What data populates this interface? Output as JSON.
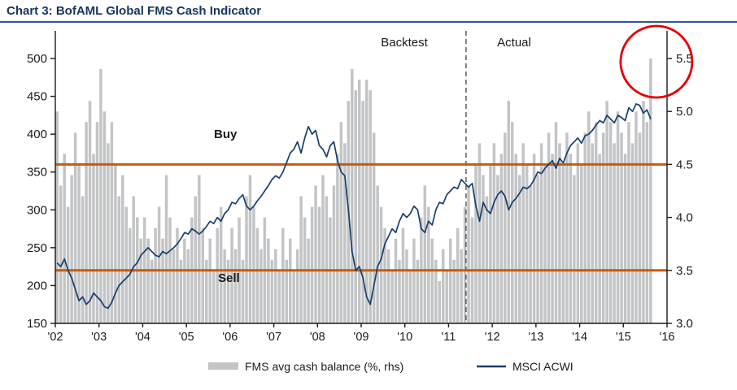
{
  "title": "Chart 3: BofAML Global FMS Cash Indicator",
  "annotations": {
    "backtest": "Backtest",
    "actual": "Actual",
    "buy": "Buy",
    "sell": "Sell"
  },
  "legend": [
    {
      "label": "FMS avg cash balance (%, rhs)",
      "swatch": "bar",
      "color": "#c2c4c6"
    },
    {
      "label": "MSCI ACWI",
      "swatch": "line",
      "color": "#173f6b"
    }
  ],
  "colors": {
    "title": "#17365d",
    "title_rule": "#2f5597",
    "bar": "#c2c4c6",
    "line": "#173f6b",
    "threshold": "#c55a11",
    "divider": "#3f3f3f",
    "highlight_circle": "#e50000",
    "axis_text": "#1a1a1a",
    "axis_line": "#1a1a1a"
  },
  "chart_data": {
    "type": "combo",
    "x": {
      "start": "2002-01",
      "interval": "monthly",
      "points": 164
    },
    "x_axis": {
      "min_year": 2002,
      "max_year": 2016,
      "tick_labels": [
        "'02",
        "'03",
        "'04",
        "'05",
        "'06",
        "'07",
        "'08",
        "'09",
        "'10",
        "'11",
        "'12",
        "'13",
        "'14",
        "'15",
        "'16"
      ]
    },
    "left_axis": {
      "min": 150,
      "max": 500,
      "ticks": [
        150,
        200,
        250,
        300,
        350,
        400,
        450,
        500
      ],
      "series": "MSCI ACWI"
    },
    "right_axis": {
      "min": 3.0,
      "max": 5.5,
      "tick_labels": [
        "3.0",
        "3.5",
        "4.0",
        "4.5",
        "5.0",
        "5.5"
      ],
      "series": "FMS avg cash balance (%)"
    },
    "thresholds": [
      {
        "label": "Buy",
        "value_rhs": 4.5
      },
      {
        "label": "Sell",
        "value_rhs": 3.5
      }
    ],
    "divider": {
      "x_year": 2011.4,
      "left_label": "Backtest",
      "right_label": "Actual",
      "style": "dashed"
    },
    "highlight": {
      "type": "circle",
      "target": "last_bar",
      "color": "#e50000"
    },
    "series": [
      {
        "name": "FMS avg cash balance (%, rhs)",
        "type": "bar",
        "axis": "right",
        "values": [
          5.0,
          4.3,
          4.6,
          4.1,
          4.4,
          4.8,
          4.5,
          4.2,
          4.9,
          5.1,
          4.6,
          4.9,
          5.4,
          5.0,
          4.7,
          4.9,
          4.5,
          4.2,
          4.4,
          4.1,
          3.9,
          4.2,
          4.0,
          3.8,
          4.0,
          3.8,
          3.6,
          3.9,
          4.1,
          3.8,
          4.4,
          4.0,
          3.7,
          3.9,
          3.6,
          3.8,
          3.7,
          4.0,
          4.2,
          4.4,
          3.9,
          3.6,
          3.8,
          3.5,
          3.9,
          4.1,
          3.7,
          3.6,
          3.9,
          3.7,
          4.0,
          3.6,
          4.2,
          4.4,
          4.1,
          3.9,
          3.7,
          4.0,
          3.8,
          3.6,
          3.7,
          3.5,
          3.9,
          3.6,
          3.8,
          3.5,
          3.7,
          4.2,
          4.0,
          3.8,
          4.1,
          4.3,
          4.1,
          4.4,
          4.2,
          4.0,
          4.3,
          4.6,
          4.9,
          4.7,
          5.1,
          5.4,
          5.2,
          5.3,
          5.1,
          5.3,
          5.2,
          4.8,
          4.3,
          4.1,
          3.9,
          3.7,
          3.5,
          3.8,
          3.6,
          3.9,
          3.7,
          3.5,
          3.8,
          3.6,
          4.0,
          4.3,
          4.1,
          3.8,
          3.6,
          3.4,
          3.7,
          3.5,
          3.8,
          3.6,
          3.9,
          3.7,
          4.1,
          4.3,
          4.0,
          4.5,
          4.7,
          4.4,
          4.2,
          4.5,
          4.7,
          4.4,
          4.6,
          4.8,
          5.1,
          4.9,
          4.6,
          4.4,
          4.7,
          4.5,
          4.3,
          4.6,
          4.4,
          4.7,
          4.5,
          4.8,
          4.6,
          4.9,
          4.7,
          4.5,
          4.8,
          4.6,
          4.4,
          4.7,
          4.5,
          4.8,
          5.0,
          4.7,
          4.9,
          4.6,
          4.8,
          5.1,
          4.9,
          4.7,
          5.0,
          4.8,
          4.6,
          4.9,
          4.7,
          5.0,
          4.8,
          5.1,
          4.9,
          5.5
        ]
      },
      {
        "name": "MSCI ACWI",
        "type": "line",
        "axis": "left",
        "values": [
          230,
          225,
          235,
          220,
          210,
          195,
          180,
          185,
          175,
          180,
          190,
          185,
          180,
          172,
          170,
          178,
          190,
          200,
          205,
          210,
          215,
          225,
          230,
          240,
          245,
          250,
          245,
          240,
          238,
          245,
          242,
          246,
          250,
          255,
          262,
          270,
          268,
          275,
          272,
          268,
          272,
          278,
          285,
          282,
          290,
          285,
          295,
          300,
          310,
          308,
          315,
          320,
          305,
          300,
          305,
          312,
          318,
          325,
          332,
          340,
          345,
          342,
          350,
          362,
          375,
          380,
          390,
          375,
          395,
          410,
          400,
          405,
          385,
          380,
          370,
          385,
          390,
          365,
          350,
          345,
          300,
          245,
          220,
          225,
          210,
          185,
          175,
          200,
          225,
          235,
          255,
          265,
          275,
          270,
          285,
          295,
          290,
          295,
          305,
          300,
          275,
          270,
          285,
          280,
          300,
          310,
          308,
          320,
          325,
          330,
          328,
          340,
          335,
          330,
          335,
          305,
          285,
          310,
          300,
          295,
          310,
          320,
          325,
          318,
          300,
          310,
          315,
          322,
          330,
          328,
          332,
          340,
          350,
          348,
          355,
          360,
          365,
          355,
          368,
          362,
          375,
          385,
          390,
          395,
          388,
          398,
          400,
          405,
          412,
          418,
          415,
          425,
          420,
          415,
          425,
          422,
          418,
          435,
          430,
          440,
          438,
          428,
          432,
          420
        ]
      }
    ]
  }
}
